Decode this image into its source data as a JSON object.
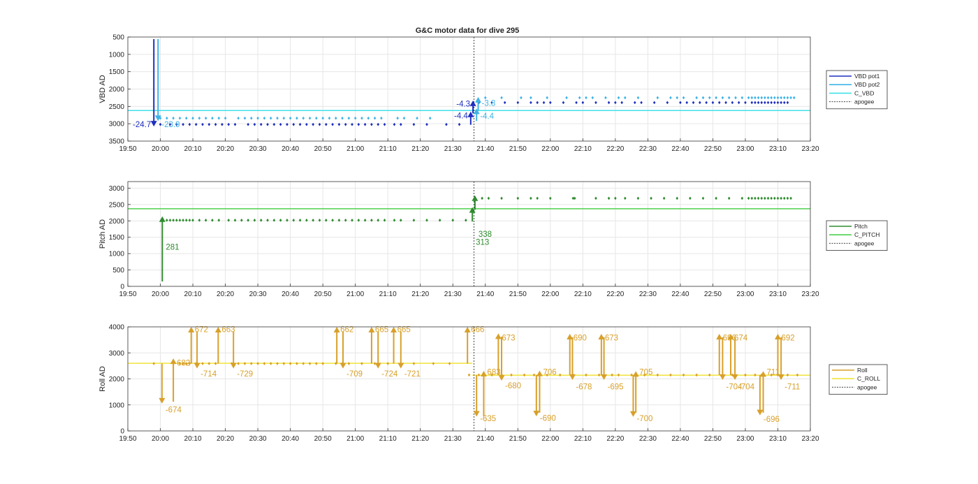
{
  "figure_title": "G&C motor data for dive 295",
  "chart_data": [
    {
      "type": "line",
      "ylabel": "VBD AD",
      "ylim": [
        500,
        3500
      ],
      "y_reversed": true,
      "yticks": [
        "500",
        "1000",
        "1500",
        "2000",
        "2500",
        "3000",
        "3500"
      ],
      "xticks": [
        "19:50",
        "20:00",
        "20:10",
        "20:20",
        "20:30",
        "20:40",
        "20:50",
        "21:00",
        "21:10",
        "21:20",
        "21:30",
        "21:40",
        "21:50",
        "22:00",
        "22:10",
        "22:20",
        "22:30",
        "22:40",
        "22:50",
        "23:00",
        "23:10",
        "23:20"
      ],
      "xlim_minutes": [
        0,
        210
      ],
      "grid": true,
      "legend_position": "right",
      "legend": [
        {
          "label": "VBD pot1",
          "color": "#1f2fbf",
          "dash": false
        },
        {
          "label": "VBD pot2",
          "color": "#3fb3e6",
          "dash": false
        },
        {
          "label": "C_VBD",
          "color": "#40e0e8",
          "dash": false
        },
        {
          "label": "apogee",
          "color": "#444444",
          "dash": true
        }
      ],
      "apogee_x": 106.5,
      "hlines": [
        {
          "y": 2620,
          "color": "#40e0e8"
        }
      ],
      "series": [
        {
          "color": "#1f2fbf",
          "y": 3020,
          "x": [
            10,
            13,
            15,
            17,
            19,
            21,
            23,
            25,
            27,
            29,
            31,
            33,
            37,
            39,
            41,
            43,
            45,
            47,
            49,
            51,
            53,
            55,
            57,
            59,
            61,
            63,
            65,
            67,
            69,
            71,
            73,
            75,
            77,
            79,
            82,
            84,
            88,
            92,
            98,
            102
          ]
        },
        {
          "color": "#3fb3e6",
          "y": 2840,
          "x": [
            10,
            12,
            14,
            16,
            18,
            20,
            22,
            24,
            26,
            28,
            30,
            34,
            36,
            38,
            40,
            42,
            44,
            46,
            48,
            50,
            52,
            54,
            56,
            58,
            60,
            62,
            64,
            66,
            68,
            70,
            72,
            74,
            76,
            78,
            83,
            85,
            89,
            93
          ]
        },
        {
          "color": "#1f2fbf",
          "y": 2390,
          "x": [
            108,
            112,
            116,
            120,
            124,
            126,
            128,
            130,
            134,
            138,
            140,
            144,
            148,
            150,
            152,
            156,
            158,
            162,
            166,
            170,
            172,
            174,
            176,
            178,
            180,
            182,
            184,
            186,
            188,
            190,
            192,
            193,
            194,
            195,
            196,
            197,
            198,
            199,
            200,
            201,
            202,
            203
          ]
        },
        {
          "color": "#3fb3e6",
          "y": 2250,
          "x": [
            110,
            115,
            121,
            124,
            129,
            135,
            139,
            141,
            143,
            147,
            151,
            153,
            157,
            163,
            167,
            169,
            171,
            175,
            177,
            179,
            181,
            183,
            185,
            187,
            189,
            191,
            192,
            193,
            194,
            195,
            196,
            197,
            198,
            199,
            200,
            201,
            202,
            203,
            204,
            205
          ]
        }
      ],
      "arrows": [
        {
          "x": 8,
          "from": 560,
          "to": 3080,
          "color": "#1f2fbf",
          "label": "-24.7",
          "label_side": "left",
          "label_y": 3020
        },
        {
          "x": 9.3,
          "from": 560,
          "to": 2920,
          "color": "#3fb3e6",
          "label": "-23.9",
          "label_side": "right",
          "label_y": 3020
        },
        {
          "x": 105.5,
          "from": 3030,
          "to": 2650,
          "color": "#1f2fbf",
          "label": "-4.4",
          "label_side": "left",
          "label_y": 2770
        },
        {
          "x": 106.2,
          "from": 2700,
          "to": 2330,
          "color": "#1f2fbf",
          "label": "-4.3",
          "label_side": "left",
          "label_y": 2420
        },
        {
          "x": 107.3,
          "from": 2920,
          "to": 2560,
          "color": "#3fb3e6",
          "label": "-4.4",
          "label_side": "right",
          "label_y": 2780
        },
        {
          "x": 107.8,
          "from": 2620,
          "to": 2230,
          "color": "#3fb3e6",
          "label": "-3.8",
          "label_side": "right",
          "label_y": 2400
        }
      ]
    },
    {
      "type": "line",
      "ylabel": "Pitch AD",
      "ylim": [
        0,
        3200
      ],
      "y_reversed": false,
      "yticks": [
        "0",
        "500",
        "1000",
        "1500",
        "2000",
        "2500",
        "3000"
      ],
      "xticks": [
        "19:50",
        "20:00",
        "20:10",
        "20:20",
        "20:30",
        "20:40",
        "20:50",
        "21:00",
        "21:10",
        "21:20",
        "21:30",
        "21:40",
        "21:50",
        "22:00",
        "22:10",
        "22:20",
        "22:30",
        "22:40",
        "22:50",
        "23:00",
        "23:10",
        "23:20"
      ],
      "xlim_minutes": [
        0,
        210
      ],
      "grid": true,
      "legend_position": "right",
      "legend": [
        {
          "label": "Pitch",
          "color": "#2e8b2e",
          "dash": false
        },
        {
          "label": "C_PITCH",
          "color": "#4ed14e",
          "dash": false
        },
        {
          "label": "apogee",
          "color": "#444444",
          "dash": true
        }
      ],
      "apogee_x": 106.5,
      "hlines": [
        {
          "y": 2370,
          "color": "#4ed14e"
        }
      ],
      "series": [
        {
          "color": "#2e8b2e",
          "y": 2020,
          "x": [
            12,
            13,
            14,
            15,
            16,
            17,
            18,
            19,
            20,
            22,
            24,
            26,
            28,
            31,
            33,
            35,
            37,
            39,
            41,
            43,
            45,
            47,
            49,
            51,
            53,
            55,
            57,
            59,
            61,
            63,
            65,
            67,
            69,
            71,
            73,
            75,
            77,
            79,
            82,
            84,
            88,
            92,
            96,
            100,
            104
          ]
        },
        {
          "color": "#2e8b2e",
          "y": 2690,
          "x": [
            109,
            111,
            115,
            120,
            124,
            126,
            130,
            137,
            137.5,
            144,
            148,
            150,
            153,
            157,
            161,
            165,
            169,
            173,
            177,
            181,
            185,
            189,
            191,
            192,
            193,
            194,
            195,
            196,
            197,
            198,
            199,
            200,
            201,
            202,
            203,
            204
          ]
        }
      ],
      "arrows": [
        {
          "x": 10.6,
          "from": 150,
          "to": 2140,
          "color": "#2e8b2e",
          "label": "281",
          "label_side": "right",
          "label_y": 1210
        },
        {
          "x": 106,
          "from": 1980,
          "to": 2420,
          "color": "#2e8b2e",
          "label": "313",
          "label_side": "right",
          "label_y": 1360
        },
        {
          "x": 106.8,
          "from": 2340,
          "to": 2780,
          "color": "#2e8b2e",
          "label": "338",
          "label_side": "right",
          "label_y": 1600
        }
      ]
    },
    {
      "type": "line",
      "ylabel": "Roll AD",
      "ylim": [
        0,
        4000
      ],
      "y_reversed": false,
      "yticks": [
        "0",
        "1000",
        "2000",
        "3000",
        "4000"
      ],
      "xticks": [
        "19:50",
        "20:00",
        "20:10",
        "20:20",
        "20:30",
        "20:40",
        "20:50",
        "21:00",
        "21:10",
        "21:20",
        "21:30",
        "21:40",
        "21:50",
        "22:00",
        "22:10",
        "22:20",
        "22:30",
        "22:40",
        "22:50",
        "23:00",
        "23:10",
        "23:20"
      ],
      "xlim_minutes": [
        0,
        210
      ],
      "grid": true,
      "legend_position": "right",
      "legend": [
        {
          "label": "Roll",
          "color": "#d8a02a",
          "dash": false
        },
        {
          "label": "C_ROLL",
          "color": "#f0e43a",
          "dash": false
        },
        {
          "label": "apogee",
          "color": "#444444",
          "dash": true
        }
      ],
      "apogee_x": 106.5,
      "hlines": [
        {
          "y": 2600,
          "color": "#f0e43a",
          "x_range": [
            0,
            106
          ]
        },
        {
          "y": 2140,
          "color": "#f0e43a",
          "x_range": [
            106,
            210
          ]
        }
      ],
      "series": [
        {
          "color": "#d8a02a",
          "y": 2590,
          "x": [
            8,
            14,
            16,
            17,
            18,
            19,
            21,
            23,
            25,
            27,
            32,
            34,
            36,
            38,
            40,
            42,
            44,
            46,
            48,
            50,
            52,
            54,
            56,
            58,
            60,
            64,
            66,
            68,
            72,
            76,
            80,
            84,
            88,
            94,
            99
          ]
        },
        {
          "color": "#d8a02a",
          "y": 2150,
          "x": [
            105,
            108,
            112,
            115,
            118,
            122,
            125,
            129,
            133,
            137,
            141,
            145,
            149,
            151,
            155,
            159,
            163,
            167,
            171,
            175,
            179,
            183,
            186,
            190,
            193,
            195,
            198,
            200,
            203,
            206
          ]
        }
      ],
      "arrows": [
        {
          "x": 10.5,
          "from": 2590,
          "to": 1050,
          "color": "#d8a02a",
          "label": "-674",
          "label_side": "right",
          "label_y": 820
        },
        {
          "x": 14,
          "from": 1120,
          "to": 2790,
          "color": "#d8a02a",
          "label": "682",
          "label_side": "right",
          "label_y": 2620
        },
        {
          "x": 19.5,
          "from": 2590,
          "to": 4000,
          "color": "#d8a02a",
          "label": "672",
          "label_side": "right",
          "label_y": 3900
        },
        {
          "x": 21.3,
          "from": 3820,
          "to": 2400,
          "color": "#d8a02a",
          "label": "-714",
          "label_side": "right",
          "label_y": 2200
        },
        {
          "x": 27.8,
          "from": 2590,
          "to": 4000,
          "color": "#d8a02a",
          "label": "663",
          "label_side": "right",
          "label_y": 3900
        },
        {
          "x": 32.5,
          "from": 3820,
          "to": 2400,
          "color": "#d8a02a",
          "label": "-729",
          "label_side": "right",
          "label_y": 2200
        },
        {
          "x": 64.3,
          "from": 2590,
          "to": 4000,
          "color": "#d8a02a",
          "label": "662",
          "label_side": "right",
          "label_y": 3900
        },
        {
          "x": 66.2,
          "from": 3820,
          "to": 2400,
          "color": "#d8a02a",
          "label": "-709",
          "label_side": "right",
          "label_y": 2200
        },
        {
          "x": 75,
          "from": 2590,
          "to": 4000,
          "color": "#d8a02a",
          "label": "665",
          "label_side": "right",
          "label_y": 3900
        },
        {
          "x": 77,
          "from": 3820,
          "to": 2400,
          "color": "#d8a02a",
          "label": "-724",
          "label_side": "right",
          "label_y": 2200
        },
        {
          "x": 81.8,
          "from": 2590,
          "to": 4000,
          "color": "#d8a02a",
          "label": "665",
          "label_side": "right",
          "label_y": 3900
        },
        {
          "x": 84,
          "from": 3820,
          "to": 2400,
          "color": "#d8a02a",
          "label": "-721",
          "label_side": "right",
          "label_y": 2200
        },
        {
          "x": 104.5,
          "from": 2590,
          "to": 4000,
          "color": "#d8a02a",
          "label": "666",
          "label_side": "right",
          "label_y": 3900
        },
        {
          "x": 107.3,
          "from": 2150,
          "to": 550,
          "color": "#d8a02a",
          "label": "-635",
          "label_side": "right",
          "label_y": 480
        },
        {
          "x": 109.5,
          "from": 570,
          "to": 2310,
          "color": "#d8a02a",
          "label": "683",
          "label_side": "right",
          "label_y": 2270
        },
        {
          "x": 114,
          "from": 2150,
          "to": 3750,
          "color": "#d8a02a",
          "label": "673",
          "label_side": "right",
          "label_y": 3580
        },
        {
          "x": 115,
          "from": 3620,
          "to": 1930,
          "color": "#d8a02a",
          "label": "-680",
          "label_side": "right",
          "label_y": 1750
        },
        {
          "x": 125.7,
          "from": 2150,
          "to": 560,
          "color": "#d8a02a",
          "label": "-690",
          "label_side": "right",
          "label_y": 500
        },
        {
          "x": 126.7,
          "from": 700,
          "to": 2320,
          "color": "#d8a02a",
          "label": "706",
          "label_side": "right",
          "label_y": 2270
        },
        {
          "x": 136,
          "from": 2150,
          "to": 3730,
          "color": "#d8a02a",
          "label": "690",
          "label_side": "right",
          "label_y": 3580
        },
        {
          "x": 136.8,
          "from": 3600,
          "to": 1960,
          "color": "#d8a02a",
          "label": "-678",
          "label_side": "right",
          "label_y": 1700
        },
        {
          "x": 145.7,
          "from": 2150,
          "to": 3730,
          "color": "#d8a02a",
          "label": "673",
          "label_side": "right",
          "label_y": 3580
        },
        {
          "x": 146.5,
          "from": 3600,
          "to": 1960,
          "color": "#d8a02a",
          "label": "-695",
          "label_side": "right",
          "label_y": 1700
        },
        {
          "x": 155.5,
          "from": 2150,
          "to": 540,
          "color": "#d8a02a",
          "label": "-700",
          "label_side": "right",
          "label_y": 480
        },
        {
          "x": 156.3,
          "from": 700,
          "to": 2300,
          "color": "#d8a02a",
          "label": "705",
          "label_side": "right",
          "label_y": 2270
        },
        {
          "x": 182,
          "from": 2150,
          "to": 3730,
          "color": "#d8a02a",
          "label": "696",
          "label_side": "right",
          "label_y": 3580
        },
        {
          "x": 183,
          "from": 3600,
          "to": 1960,
          "color": "#d8a02a",
          "label": "-704",
          "label_side": "right",
          "label_y": 1700
        },
        {
          "x": 185.5,
          "from": 2150,
          "to": 3730,
          "color": "#d8a02a",
          "label": "674",
          "label_side": "right",
          "label_y": 3580
        },
        {
          "x": 186.8,
          "from": 3600,
          "to": 1960,
          "color": "#d8a02a",
          "label": "-704",
          "label_side": "right",
          "label_y": 1700
        },
        {
          "x": 194.5,
          "from": 2150,
          "to": 600,
          "color": "#d8a02a",
          "label": "-696",
          "label_side": "right",
          "label_y": 450
        },
        {
          "x": 195.5,
          "from": 700,
          "to": 2300,
          "color": "#d8a02a",
          "label": "711",
          "label_side": "right",
          "label_y": 2270
        },
        {
          "x": 200,
          "from": 2150,
          "to": 3730,
          "color": "#d8a02a",
          "label": "692",
          "label_side": "right",
          "label_y": 3580
        },
        {
          "x": 201,
          "from": 3600,
          "to": 1960,
          "color": "#d8a02a",
          "label": "-711",
          "label_side": "right",
          "label_y": 1700
        }
      ]
    }
  ]
}
